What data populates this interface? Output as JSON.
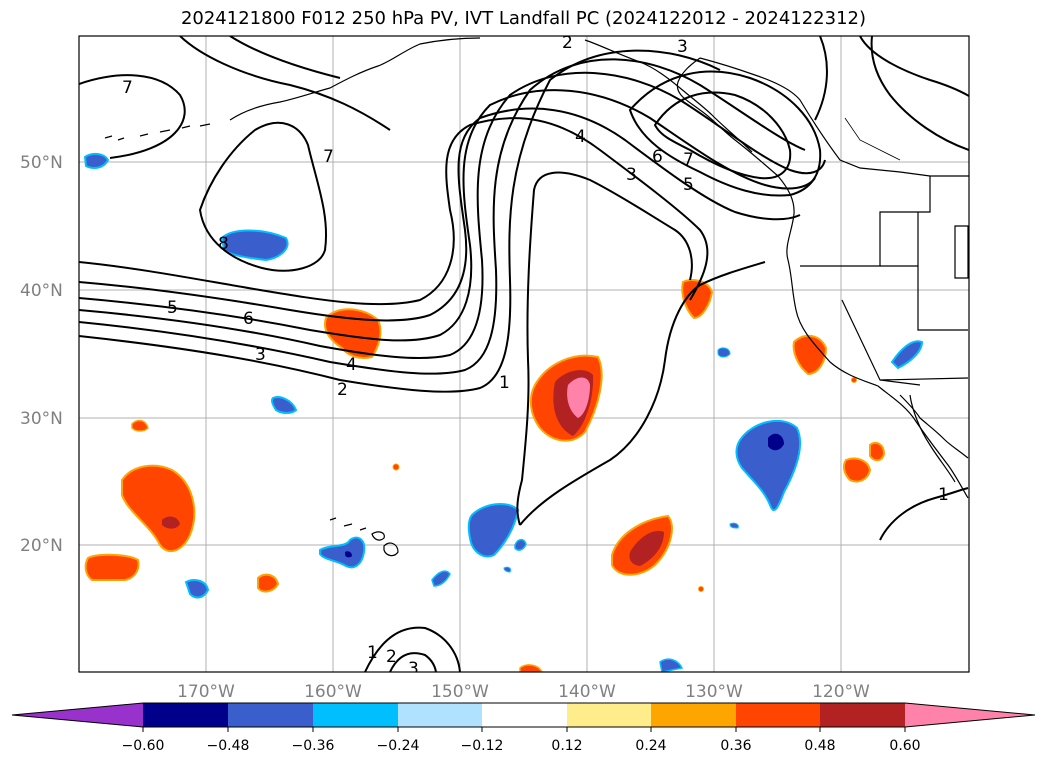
{
  "title": "2024121800 F012 250 hPa PV, IVT Landfall PC (2024122012 - 2024122312)",
  "lat_labels": [
    "50°N",
    "40°N",
    "30°N",
    "20°N"
  ],
  "lon_labels": [
    "170°W",
    "160°W",
    "150°W",
    "140°W",
    "130°W",
    "120°W"
  ],
  "colorbar": {
    "colors": [
      "#9932CC",
      "#00008B",
      "#3A5FCD",
      "#00BFFF",
      "#B0E2FF",
      "#FFFFFF",
      "#FFEC8B",
      "#FFA500",
      "#FF4500",
      "#B22222",
      "#FF82AB"
    ],
    "tick_labels": [
      "−0.60",
      "−0.48",
      "−0.36",
      "−0.24",
      "−0.12",
      "0.12",
      "0.24",
      "0.36",
      "0.48",
      "0.60"
    ]
  },
  "contour_labels": [
    "7",
    "7",
    "8",
    "5",
    "6",
    "3",
    "4",
    "2",
    "1",
    "4",
    "3",
    "6",
    "7",
    "5",
    "2",
    "3",
    "1",
    "1",
    "2",
    "3"
  ]
}
